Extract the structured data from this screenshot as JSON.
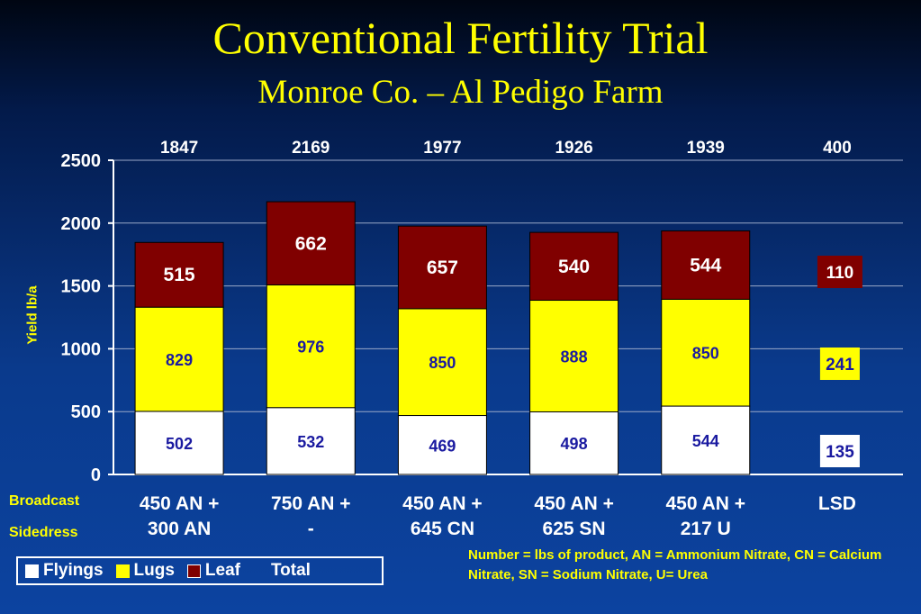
{
  "title": "Conventional Fertility Trial",
  "subtitle": "Monroe Co. – Al Pedigo Farm",
  "row_labels": {
    "broadcast": "Broadcast",
    "sidedress": "Sidedress"
  },
  "legend": {
    "flyings": "Flyings",
    "lugs": "Lugs",
    "leaf": "Leaf",
    "total": "Total"
  },
  "footnote": "Number = lbs of product, AN = Ammonium Nitrate, CN = Calcium Nitrate, SN = Sodium Nitrate, U= Urea",
  "colors": {
    "flyings": "#ffffff",
    "lugs": "#ffff00",
    "leaf": "#800000",
    "lugs_text": "#1a1aa0",
    "leaf_text": "#ffffff",
    "total_text": "#ffffff"
  },
  "chart_data": {
    "type": "bar",
    "stacked": true,
    "ylabel": "Yield lb/a",
    "ylim": [
      0,
      2500
    ],
    "yticks": [
      0,
      500,
      1000,
      1500,
      2000,
      2500
    ],
    "grid": true,
    "categories": [
      {
        "broadcast": "450 AN +",
        "sidedress": "300 AN"
      },
      {
        "broadcast": "750 AN +",
        "sidedress": "-"
      },
      {
        "broadcast": "450 AN +",
        "sidedress": "645 CN"
      },
      {
        "broadcast": "450 AN +",
        "sidedress": "625 SN"
      },
      {
        "broadcast": "450 AN +",
        "sidedress": "217 U"
      }
    ],
    "series": [
      {
        "name": "Flyings",
        "values": [
          502,
          532,
          469,
          498,
          544
        ]
      },
      {
        "name": "Lugs",
        "values": [
          829,
          976,
          850,
          888,
          850
        ]
      },
      {
        "name": "Leaf",
        "values": [
          515,
          662,
          657,
          540,
          544
        ]
      }
    ],
    "totals": [
      1847,
      2169,
      1977,
      1926,
      1939
    ],
    "lsd": {
      "label": "LSD",
      "total": 400,
      "flyings": 135,
      "lugs": 241,
      "leaf": 110
    }
  }
}
